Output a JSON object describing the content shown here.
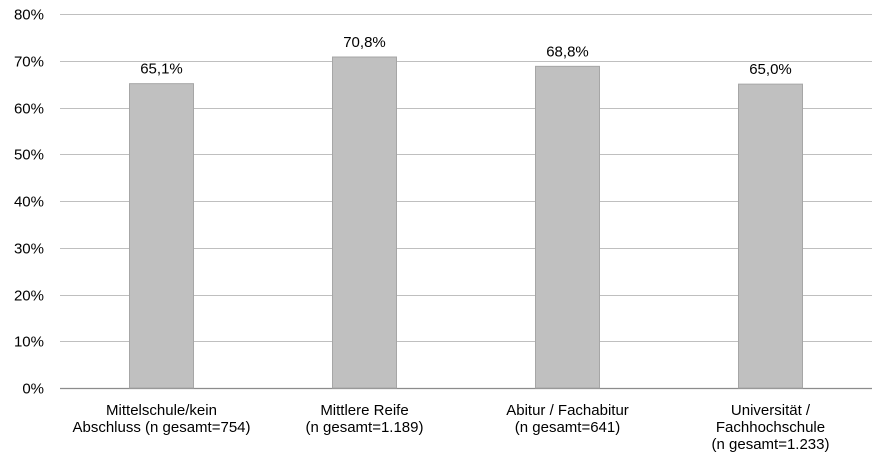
{
  "chart_data": {
    "type": "bar",
    "categories": [
      [
        "Mittelschule/kein",
        "Abschluss (n gesamt=754)"
      ],
      [
        "Mittlere Reife",
        "(n gesamt=1.189)"
      ],
      [
        "Abitur / Fachabitur",
        "(n gesamt=641)"
      ],
      [
        "Universität /",
        "Fachhochschule",
        "(n gesamt=1.233)"
      ]
    ],
    "values": [
      65.1,
      70.8,
      68.8,
      65.0
    ],
    "data_labels": [
      "65,1%",
      "70,8%",
      "68,8%",
      "65,0%"
    ],
    "ylim": [
      0,
      80
    ],
    "yticks": [
      0,
      10,
      20,
      30,
      40,
      50,
      60,
      70,
      80
    ],
    "ytick_labels": [
      "0%",
      "10%",
      "20%",
      "30%",
      "40%",
      "50%",
      "60%",
      "70%",
      "80%"
    ],
    "grid": true,
    "legend": "none",
    "colors": {
      "bar": "#c0c0c0",
      "bar_edge": "#a6a6a6",
      "grid": "#bfbfbf",
      "axis": "#8c8c8c"
    }
  }
}
